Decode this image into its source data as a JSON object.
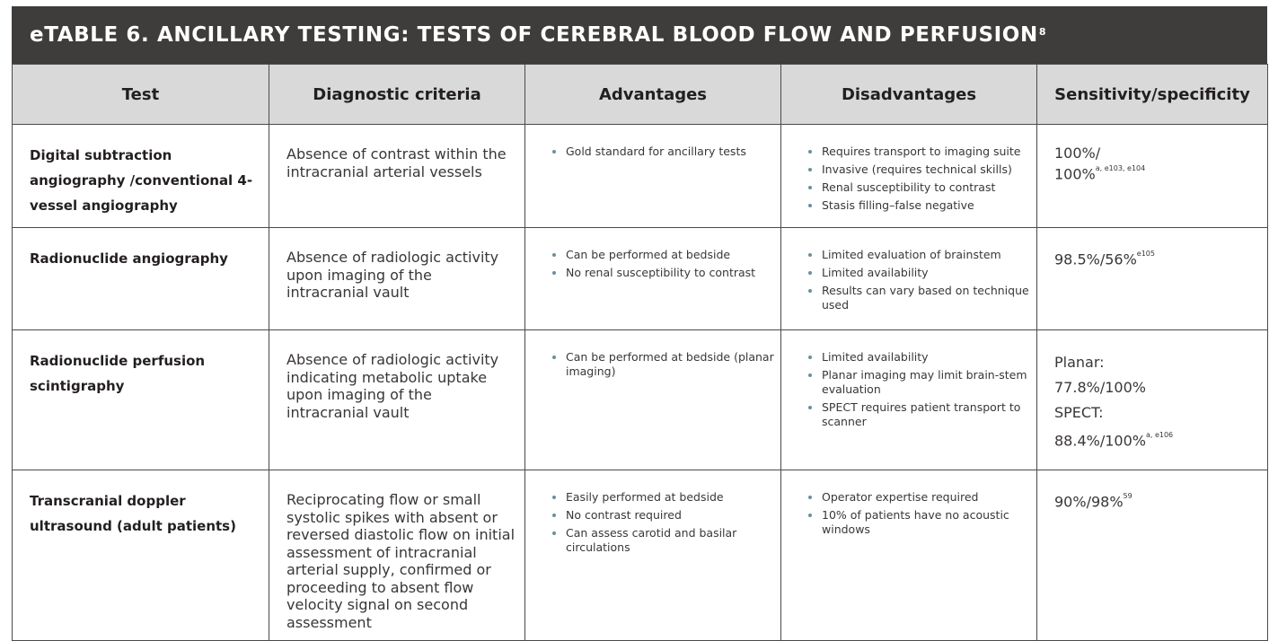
{
  "title": {
    "text": "eTABLE 6. ANCILLARY TESTING: TESTS OF CEREBRAL BLOOD FLOW AND PERFUSION",
    "ref": "8"
  },
  "columns": [
    "Test",
    "Diagnostic criteria",
    "Advantages",
    "Disadvantages",
    "Sensitivity/specificity"
  ],
  "rows": [
    {
      "test": "Digital subtraction angiography /conventional 4-vessel angiography",
      "criteria": "Absence of contrast within the intracranial arterial vessels",
      "advantages": [
        "Gold standard for ancillary tests"
      ],
      "disadvantages": [
        "Requires transport to imaging suite",
        "Invasive (requires technical skills)",
        "Renal susceptibility to contrast",
        "Stasis filling–false negative"
      ],
      "sensitivity": {
        "line1": "100%/",
        "line2": "100%",
        "sup": "a, e103, e104"
      }
    },
    {
      "test": "Radionuclide angiography",
      "criteria": "Absence of radiologic activity upon imaging of the intracranial vault",
      "advantages": [
        "Can be performed at bedside",
        "No renal susceptibility to contrast"
      ],
      "disadvantages": [
        "Limited evaluation of brainstem",
        "Limited availability",
        "Results can vary based on technique used"
      ],
      "sensitivity": {
        "line1": "98.5%/56%",
        "sup": "e105"
      }
    },
    {
      "test": "Radionuclide perfusion scintigraphy",
      "criteria": "Absence of radiologic activity indicating metabolic uptake upon imaging of the intracranial vault",
      "advantages": [
        "Can be performed at bedside (planar imaging)"
      ],
      "disadvantages": [
        "Limited availability",
        "Planar imaging may limit brain-stem evaluation",
        "SPECT requires patient transport to scanner"
      ],
      "sensitivity": {
        "line1": "Planar:",
        "line2": "77.8%/100%",
        "line3": "SPECT:",
        "line4": "88.4%/100%",
        "sup": "a, e106"
      }
    },
    {
      "test": "Transcranial doppler ultrasound (adult patients)",
      "criteria": "Reciprocating flow or small systolic spikes with absent or reversed diastolic flow on initial assessment of intracranial arterial supply, confirmed or proceeding to absent flow velocity signal on second assessment",
      "advantages": [
        "Easily performed at bedside",
        "No contrast required",
        "Can assess carotid and basilar circulations"
      ],
      "disadvantages": [
        "Operator expertise required",
        "10% of patients have no acoustic windows"
      ],
      "sensitivity": {
        "line1": "90%/98%",
        "sup": "59"
      }
    }
  ]
}
